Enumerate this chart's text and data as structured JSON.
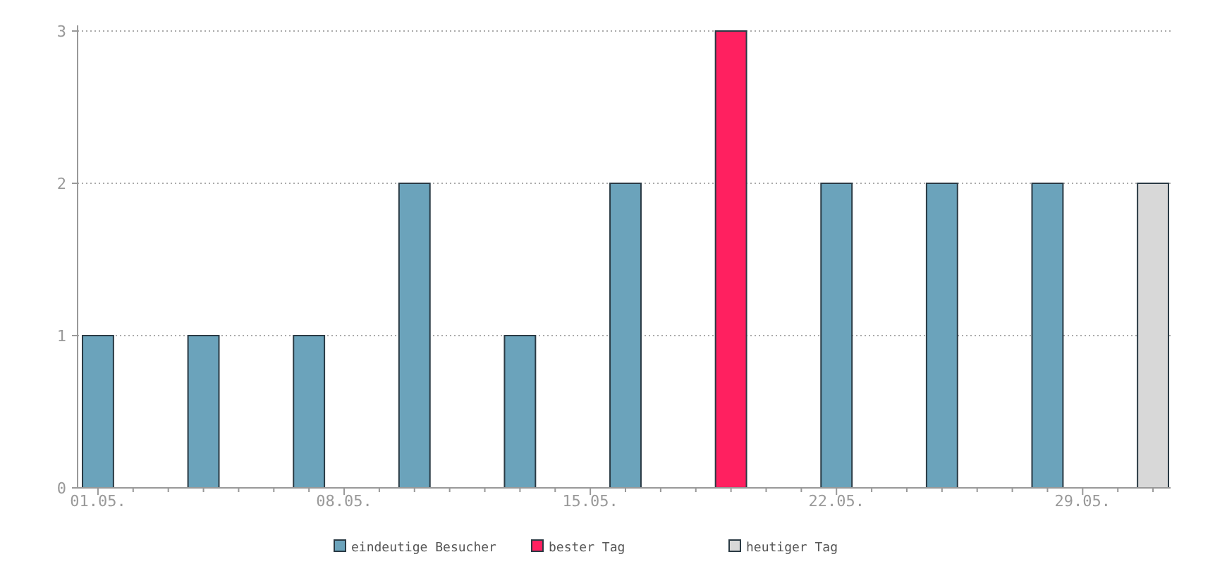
{
  "chart_data": {
    "type": "bar",
    "categories": [
      "01.05.",
      null,
      null,
      null,
      null,
      null,
      null,
      "08.05.",
      null,
      null,
      null,
      null,
      null,
      null,
      "15.05.",
      null,
      null,
      null,
      null,
      null,
      null,
      "22.05.",
      null,
      null,
      null,
      null,
      null,
      null,
      "29.05.",
      null,
      null
    ],
    "series": [
      {
        "name": "eindeutige Besucher",
        "color": "#6ba3bb",
        "values": [
          1,
          null,
          null,
          1,
          null,
          null,
          1,
          null,
          null,
          2,
          null,
          null,
          1,
          null,
          null,
          2,
          null,
          null,
          null,
          null,
          null,
          2,
          null,
          null,
          2,
          null,
          null,
          2,
          null,
          null,
          null
        ]
      },
      {
        "name": "bester Tag",
        "color": "#ff2060",
        "values": [
          null,
          null,
          null,
          null,
          null,
          null,
          null,
          null,
          null,
          null,
          null,
          null,
          null,
          null,
          null,
          null,
          null,
          null,
          3,
          null,
          null,
          null,
          null,
          null,
          null,
          null,
          null,
          null,
          null,
          null,
          null
        ]
      },
      {
        "name": "heutiger Tag",
        "color": "#d8d8d8",
        "values": [
          null,
          null,
          null,
          null,
          null,
          null,
          null,
          null,
          null,
          null,
          null,
          null,
          null,
          null,
          null,
          null,
          null,
          null,
          null,
          null,
          null,
          null,
          null,
          null,
          null,
          null,
          null,
          null,
          null,
          null,
          2
        ]
      }
    ],
    "ylim": [
      0,
      3
    ],
    "yticks": [
      0,
      1,
      2,
      3
    ],
    "grid": "y",
    "legend": "bottom"
  }
}
